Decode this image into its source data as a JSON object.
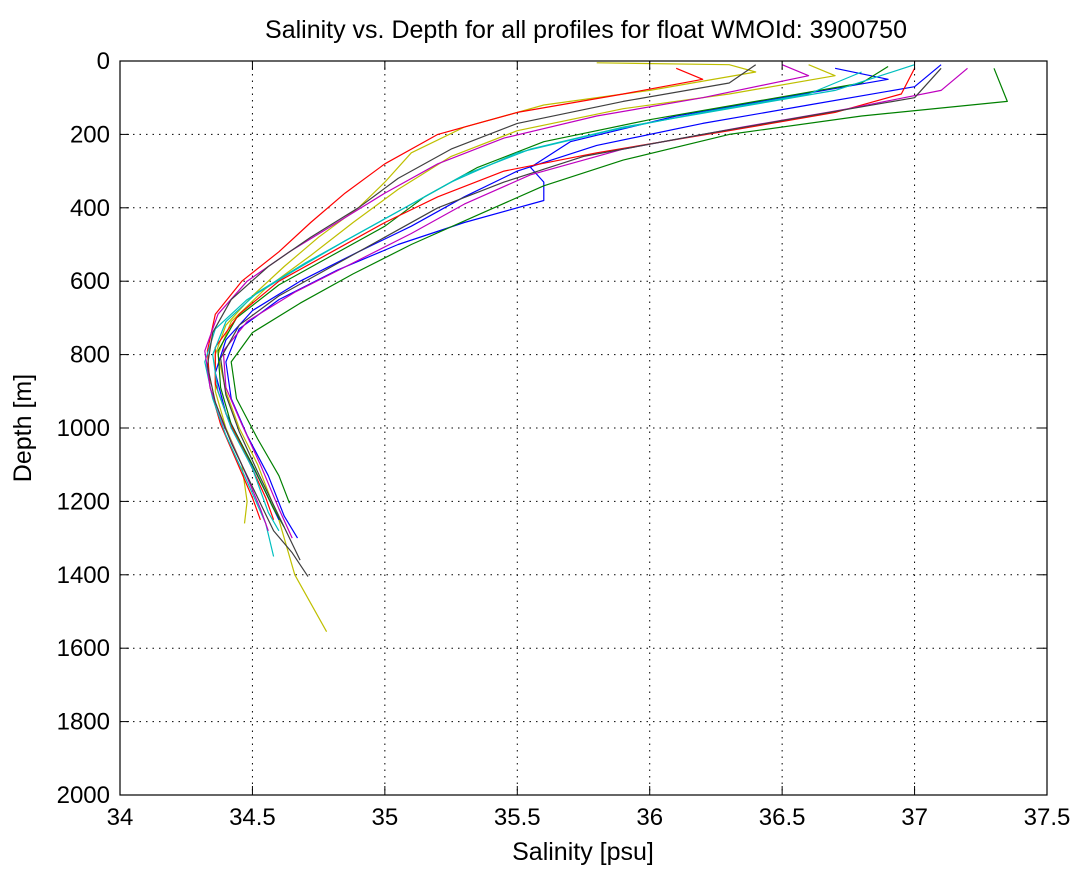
{
  "chart_data": {
    "type": "line",
    "title": "Salinity vs. Depth for all profiles for float WMOId: 3900750",
    "xlabel": "Salinity [psu]",
    "ylabel": "Depth [m]",
    "xlim": [
      34,
      37.5
    ],
    "ylim": [
      0,
      2000
    ],
    "y_reversed": true,
    "grid": true,
    "x_ticks": [
      34,
      34.5,
      35,
      35.5,
      36,
      36.5,
      37,
      37.5
    ],
    "x_tick_labels": [
      "34",
      "34.5",
      "35",
      "35.5",
      "36",
      "36.5",
      "37",
      "37.5"
    ],
    "y_ticks": [
      0,
      200,
      400,
      600,
      800,
      1000,
      1200,
      1400,
      1600,
      1800,
      2000
    ],
    "y_tick_labels": [
      "0",
      "200",
      "400",
      "600",
      "800",
      "1000",
      "1200",
      "1400",
      "1600",
      "1800",
      "2000"
    ],
    "series_colors": [
      "#0000ff",
      "#008000",
      "#ff0000",
      "#00bfbf",
      "#bf00bf",
      "#bfbf00",
      "#404040"
    ],
    "series": [
      {
        "color": "#bfbf00",
        "points": [
          [
            35.8,
            5
          ],
          [
            36.3,
            10
          ],
          [
            36.4,
            30
          ],
          [
            36.0,
            80
          ],
          [
            35.6,
            120
          ],
          [
            35.3,
            180
          ],
          [
            35.1,
            250
          ],
          [
            35.0,
            330
          ],
          [
            34.9,
            400
          ],
          [
            34.75,
            480
          ],
          [
            34.62,
            560
          ],
          [
            34.5,
            640
          ],
          [
            34.4,
            720
          ],
          [
            34.36,
            800
          ],
          [
            34.36,
            900
          ],
          [
            34.4,
            1000
          ],
          [
            34.46,
            1100
          ],
          [
            34.48,
            1200
          ],
          [
            34.47,
            1260
          ]
        ]
      },
      {
        "color": "#bfbf00",
        "points": [
          [
            36.6,
            10
          ],
          [
            36.7,
            40
          ],
          [
            36.3,
            90
          ],
          [
            35.9,
            130
          ],
          [
            35.5,
            190
          ],
          [
            35.25,
            260
          ],
          [
            35.05,
            350
          ],
          [
            34.88,
            440
          ],
          [
            34.72,
            530
          ],
          [
            34.55,
            620
          ],
          [
            34.42,
            710
          ],
          [
            34.37,
            800
          ],
          [
            34.4,
            900
          ],
          [
            34.45,
            1000
          ],
          [
            34.52,
            1100
          ],
          [
            34.6,
            1250
          ],
          [
            34.66,
            1400
          ],
          [
            34.78,
            1555
          ]
        ]
      },
      {
        "color": "#0000ff",
        "points": [
          [
            36.7,
            20
          ],
          [
            36.9,
            50
          ],
          [
            36.5,
            100
          ],
          [
            36.1,
            150
          ],
          [
            35.7,
            220
          ],
          [
            35.55,
            290
          ],
          [
            35.6,
            330
          ],
          [
            35.6,
            380
          ],
          [
            35.3,
            440
          ],
          [
            35.05,
            500
          ],
          [
            34.82,
            570
          ],
          [
            34.6,
            650
          ],
          [
            34.45,
            730
          ],
          [
            34.4,
            820
          ],
          [
            34.42,
            920
          ],
          [
            34.48,
            1020
          ],
          [
            34.56,
            1130
          ],
          [
            34.62,
            1240
          ],
          [
            34.67,
            1300
          ]
        ]
      },
      {
        "color": "#0000ff",
        "points": [
          [
            37.1,
            10
          ],
          [
            37.0,
            70
          ],
          [
            36.6,
            120
          ],
          [
            36.2,
            170
          ],
          [
            35.8,
            230
          ],
          [
            35.5,
            300
          ],
          [
            35.3,
            370
          ],
          [
            35.1,
            450
          ],
          [
            34.9,
            520
          ],
          [
            34.68,
            600
          ],
          [
            34.5,
            680
          ],
          [
            34.4,
            760
          ],
          [
            34.36,
            850
          ],
          [
            34.4,
            960
          ],
          [
            34.47,
            1060
          ],
          [
            34.54,
            1160
          ],
          [
            34.6,
            1250
          ]
        ]
      },
      {
        "color": "#008000",
        "points": [
          [
            37.3,
            20
          ],
          [
            37.35,
            110
          ],
          [
            36.8,
            150
          ],
          [
            36.3,
            200
          ],
          [
            35.9,
            270
          ],
          [
            35.6,
            340
          ],
          [
            35.35,
            420
          ],
          [
            35.1,
            500
          ],
          [
            34.88,
            580
          ],
          [
            34.68,
            660
          ],
          [
            34.5,
            740
          ],
          [
            34.42,
            820
          ],
          [
            34.44,
            920
          ],
          [
            34.52,
            1030
          ],
          [
            34.6,
            1130
          ],
          [
            34.64,
            1205
          ]
        ]
      },
      {
        "color": "#008000",
        "points": [
          [
            36.9,
            15
          ],
          [
            36.8,
            60
          ],
          [
            36.4,
            110
          ],
          [
            36.0,
            160
          ],
          [
            35.6,
            220
          ],
          [
            35.35,
            290
          ],
          [
            35.15,
            370
          ],
          [
            35.0,
            450
          ],
          [
            34.8,
            530
          ],
          [
            34.6,
            610
          ],
          [
            34.44,
            700
          ],
          [
            34.37,
            790
          ],
          [
            34.38,
            890
          ],
          [
            34.42,
            990
          ],
          [
            34.5,
            1100
          ],
          [
            34.58,
            1220
          ],
          [
            34.62,
            1270
          ]
        ]
      },
      {
        "color": "#ff0000",
        "points": [
          [
            37.0,
            20
          ],
          [
            36.95,
            90
          ],
          [
            36.7,
            140
          ],
          [
            36.3,
            190
          ],
          [
            35.8,
            250
          ],
          [
            35.45,
            300
          ],
          [
            35.2,
            370
          ],
          [
            35.0,
            440
          ],
          [
            34.8,
            520
          ],
          [
            34.6,
            600
          ],
          [
            34.45,
            690
          ],
          [
            34.36,
            780
          ],
          [
            34.36,
            880
          ],
          [
            34.41,
            980
          ],
          [
            34.48,
            1080
          ],
          [
            34.55,
            1190
          ],
          [
            34.58,
            1250
          ]
        ]
      },
      {
        "color": "#ff0000",
        "points": [
          [
            36.1,
            20
          ],
          [
            36.2,
            50
          ],
          [
            35.9,
            90
          ],
          [
            35.5,
            140
          ],
          [
            35.2,
            200
          ],
          [
            35.0,
            280
          ],
          [
            34.85,
            360
          ],
          [
            34.72,
            440
          ],
          [
            34.6,
            520
          ],
          [
            34.46,
            600
          ],
          [
            34.36,
            690
          ],
          [
            34.33,
            790
          ],
          [
            34.34,
            890
          ],
          [
            34.38,
            990
          ],
          [
            34.44,
            1090
          ],
          [
            34.5,
            1190
          ],
          [
            34.53,
            1250
          ]
        ]
      },
      {
        "color": "#00bfbf",
        "points": [
          [
            37.0,
            10
          ],
          [
            36.7,
            80
          ],
          [
            36.3,
            130
          ],
          [
            35.9,
            180
          ],
          [
            35.55,
            240
          ],
          [
            35.3,
            310
          ],
          [
            35.1,
            390
          ],
          [
            34.9,
            470
          ],
          [
            34.7,
            550
          ],
          [
            34.52,
            630
          ],
          [
            34.4,
            710
          ],
          [
            34.35,
            800
          ],
          [
            34.37,
            900
          ],
          [
            34.42,
            1000
          ],
          [
            34.5,
            1110
          ],
          [
            34.56,
            1230
          ],
          [
            34.6,
            1280
          ]
        ]
      },
      {
        "color": "#00bfbf",
        "points": [
          [
            36.8,
            30
          ],
          [
            36.6,
            90
          ],
          [
            36.2,
            140
          ],
          [
            35.85,
            190
          ],
          [
            35.5,
            250
          ],
          [
            35.25,
            330
          ],
          [
            35.05,
            410
          ],
          [
            34.85,
            490
          ],
          [
            34.66,
            570
          ],
          [
            34.48,
            650
          ],
          [
            34.36,
            730
          ],
          [
            34.32,
            820
          ],
          [
            34.35,
            920
          ],
          [
            34.4,
            1020
          ],
          [
            34.47,
            1130
          ],
          [
            34.55,
            1260
          ],
          [
            34.58,
            1350
          ]
        ]
      },
      {
        "color": "#bf00bf",
        "points": [
          [
            36.5,
            10
          ],
          [
            36.6,
            40
          ],
          [
            36.2,
            100
          ],
          [
            35.8,
            150
          ],
          [
            35.45,
            210
          ],
          [
            35.2,
            280
          ],
          [
            35.0,
            360
          ],
          [
            34.82,
            440
          ],
          [
            34.64,
            520
          ],
          [
            34.48,
            600
          ],
          [
            34.37,
            690
          ],
          [
            34.32,
            790
          ],
          [
            34.34,
            890
          ],
          [
            34.39,
            990
          ],
          [
            34.46,
            1100
          ],
          [
            34.53,
            1220
          ],
          [
            34.56,
            1280
          ]
        ]
      },
      {
        "color": "#bf00bf",
        "points": [
          [
            37.2,
            20
          ],
          [
            37.1,
            80
          ],
          [
            36.75,
            130
          ],
          [
            36.35,
            180
          ],
          [
            35.9,
            240
          ],
          [
            35.55,
            310
          ],
          [
            35.3,
            390
          ],
          [
            35.1,
            470
          ],
          [
            34.88,
            550
          ],
          [
            34.66,
            630
          ],
          [
            34.48,
            710
          ],
          [
            34.39,
            790
          ],
          [
            34.4,
            890
          ],
          [
            34.46,
            990
          ],
          [
            34.53,
            1100
          ],
          [
            34.6,
            1220
          ],
          [
            34.65,
            1300
          ]
        ]
      },
      {
        "color": "#404040",
        "points": [
          [
            36.4,
            10
          ],
          [
            36.3,
            60
          ],
          [
            35.9,
            110
          ],
          [
            35.5,
            170
          ],
          [
            35.25,
            240
          ],
          [
            35.05,
            320
          ],
          [
            34.9,
            400
          ],
          [
            34.72,
            480
          ],
          [
            34.56,
            560
          ],
          [
            34.42,
            650
          ],
          [
            34.35,
            740
          ],
          [
            34.33,
            830
          ],
          [
            34.36,
            930
          ],
          [
            34.42,
            1040
          ],
          [
            34.5,
            1160
          ],
          [
            34.58,
            1280
          ],
          [
            34.65,
            1340
          ],
          [
            34.71,
            1405
          ]
        ]
      },
      {
        "color": "#404040",
        "points": [
          [
            37.1,
            20
          ],
          [
            37.0,
            100
          ],
          [
            36.6,
            150
          ],
          [
            36.2,
            200
          ],
          [
            35.75,
            260
          ],
          [
            35.45,
            330
          ],
          [
            35.2,
            400
          ],
          [
            35.0,
            480
          ],
          [
            34.8,
            560
          ],
          [
            34.6,
            640
          ],
          [
            34.45,
            720
          ],
          [
            34.38,
            810
          ],
          [
            34.4,
            910
          ],
          [
            34.45,
            1010
          ],
          [
            34.52,
            1120
          ],
          [
            34.6,
            1240
          ],
          [
            34.68,
            1360
          ]
        ]
      }
    ]
  }
}
